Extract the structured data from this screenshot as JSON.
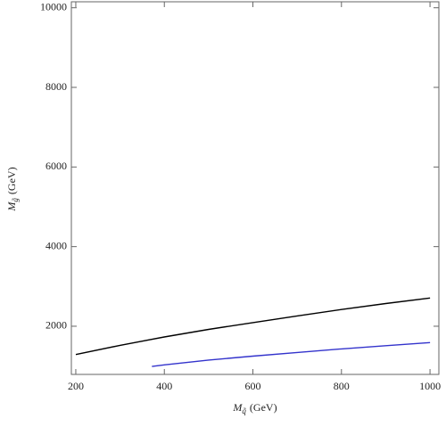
{
  "chart_data": {
    "type": "line",
    "xlabel": "M",
    "xlabel_sub": "q̃",
    "xlabel_unit": "(GeV)",
    "ylabel": "M",
    "ylabel_sub": "g̃",
    "ylabel_unit": "(GeV)",
    "xlim": [
      190,
      1020
    ],
    "ylim": [
      790,
      10150
    ],
    "xticks": [
      200,
      400,
      600,
      800,
      1000
    ],
    "yticks": [
      2000,
      4000,
      6000,
      8000,
      10000
    ],
    "series": [
      {
        "color": "#000000",
        "x": [
          200,
          300,
          400,
          500,
          600,
          700,
          800,
          900,
          1000
        ],
        "values": [
          1290,
          1520,
          1730,
          1920,
          2090,
          2260,
          2420,
          2570,
          2710
        ]
      },
      {
        "color": "#3333cc",
        "x": [
          372,
          400,
          500,
          600,
          700,
          800,
          900,
          1000
        ],
        "values": [
          990,
          1030,
          1150,
          1250,
          1340,
          1430,
          1510,
          1590
        ]
      }
    ]
  }
}
